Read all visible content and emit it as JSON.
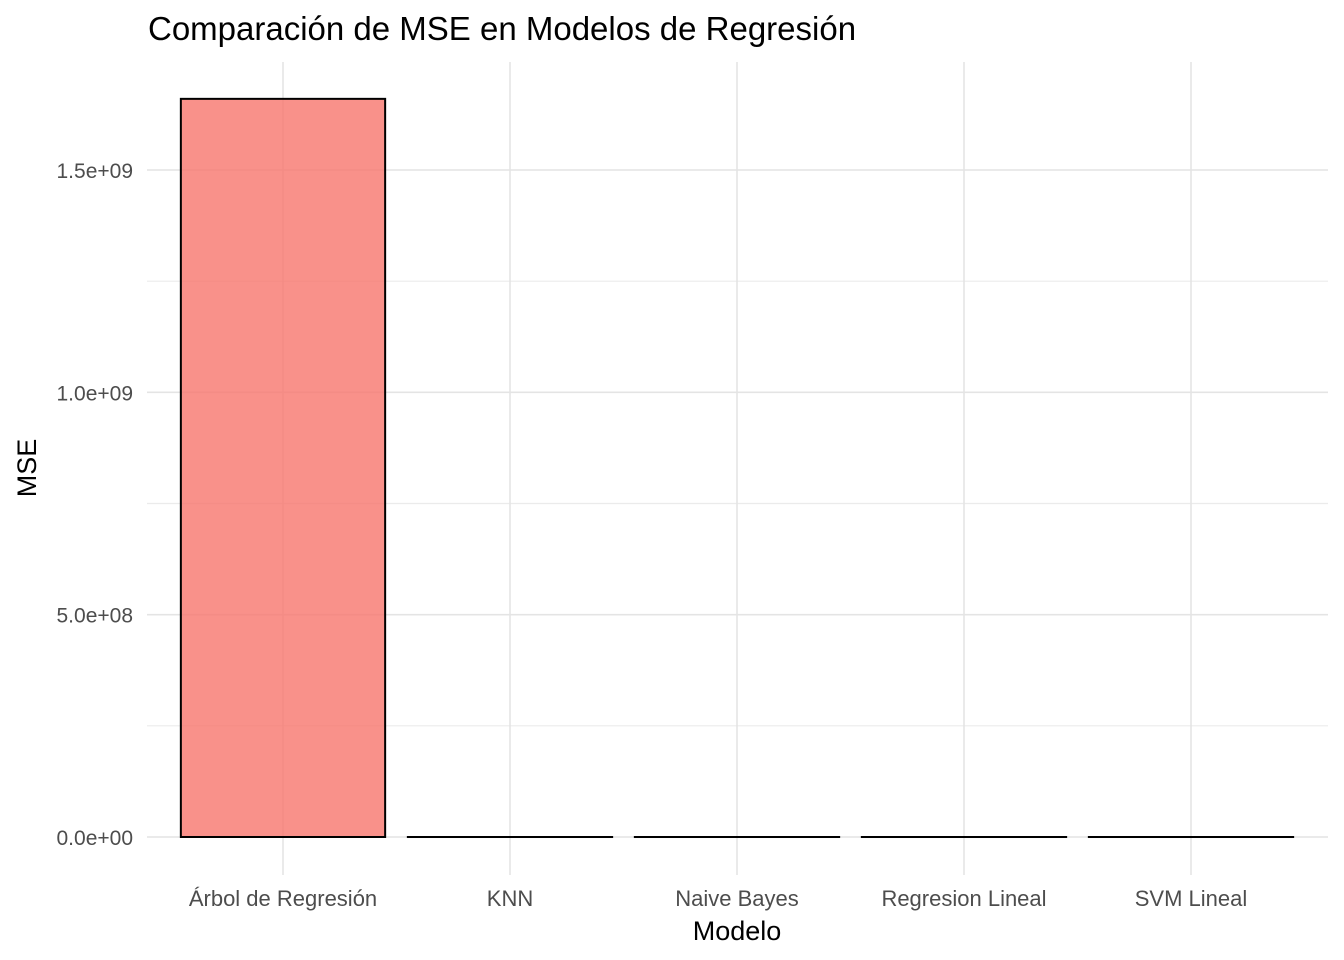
{
  "chart_data": {
    "type": "bar",
    "title": "Comparación de MSE en Modelos de Regresión",
    "xlabel": "Modelo",
    "ylabel": "MSE",
    "categories": [
      "Árbol de Regresión",
      "KNN",
      "Naive Bayes",
      "Regresion Lineal",
      "SVM Lineal"
    ],
    "values": [
      1660000000,
      0,
      0,
      0,
      0
    ],
    "ylim": [
      0,
      1660000000
    ],
    "yticks": [
      0,
      500000000,
      1000000000,
      1500000000
    ],
    "ytick_labels": [
      "0.0e+00",
      "5.0e+08",
      "1.0e+09",
      "1.5e+09"
    ],
    "grid": true,
    "legend": "none",
    "bar_fill": "#F8766D",
    "bar_fill_opacity": 0.8,
    "bar_stroke": "#000000"
  }
}
